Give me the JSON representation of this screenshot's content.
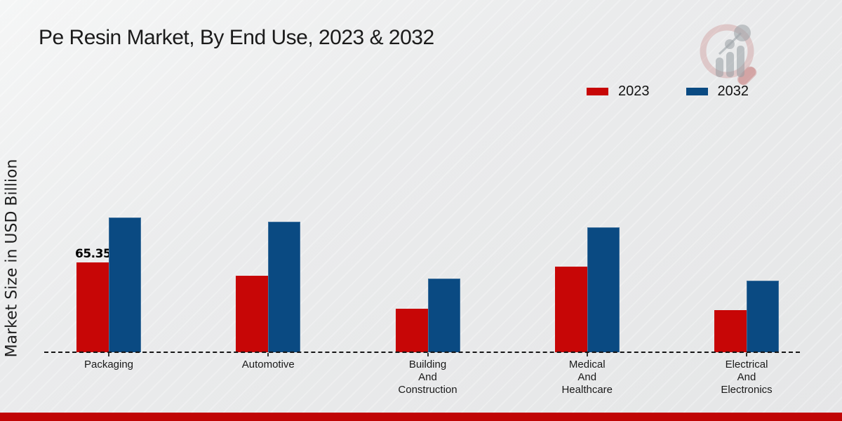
{
  "title": "Pe Resin Market, By End Use, 2023 & 2032",
  "ylabel": "Market Size in USD Billion",
  "legend": [
    {
      "label": "2023",
      "color": "#c70606"
    },
    {
      "label": "2032",
      "color": "#0a4a82"
    }
  ],
  "colors": {
    "series_2023": "#c70606",
    "series_2032": "#0a4a82",
    "footer_accent": "#c00505",
    "background": "#ebecec",
    "text": "#1a1a1a"
  },
  "chart_data": {
    "type": "bar",
    "title": "Pe Resin Market, By End Use, 2023 & 2032",
    "ylabel": "Market Size in USD Billion",
    "xlabel": "",
    "categories": [
      "Packaging",
      "Automotive",
      "Building And Construction",
      "Medical And Healthcare",
      "Electrical And Electronics"
    ],
    "category_label_lines": [
      [
        "Packaging"
      ],
      [
        "Automotive"
      ],
      [
        "Building",
        "And",
        "Construction"
      ],
      [
        "Medical",
        "And",
        "Healthcare"
      ],
      [
        "Electrical",
        "And",
        "Electronics"
      ]
    ],
    "series": [
      {
        "name": "2023",
        "color": "#c70606",
        "values": [
          65.35,
          55.5,
          31.5,
          62.5,
          30.5
        ]
      },
      {
        "name": "2032",
        "color": "#0a4a82",
        "values": [
          98.0,
          95.0,
          53.5,
          91.0,
          52.0
        ]
      }
    ],
    "bar_label": {
      "series": "2023",
      "category": "Packaging",
      "text": "65.35"
    },
    "ylim": [
      0,
      110
    ],
    "grid": false,
    "legend_position": "top-right",
    "baseline": "dashed"
  }
}
